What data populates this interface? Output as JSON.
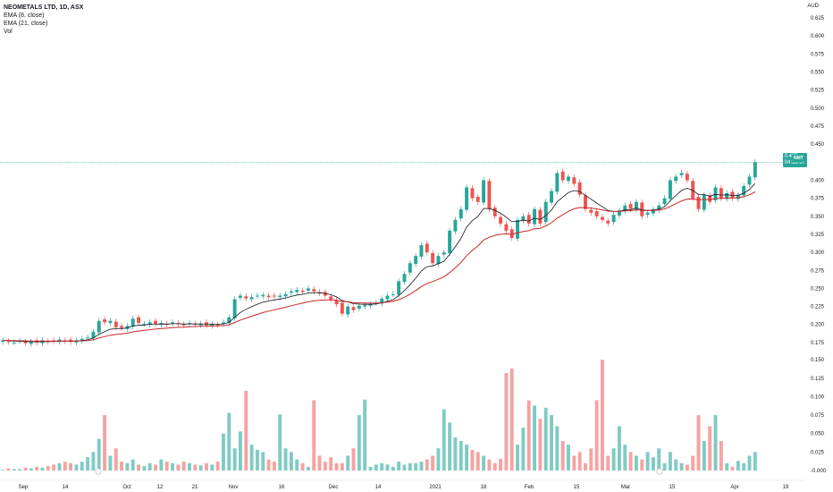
{
  "header": {
    "title": "NEOMETALS LTD, 1D, ASX",
    "indicators": [
      "EMA (8, close)",
      "EMA (21, close)",
      "Vol"
    ]
  },
  "price_panel": {
    "currency": "AUD",
    "last_price_label": "0.425",
    "countdown": "04:33:07",
    "symbol_tag": "NMT"
  },
  "colors": {
    "up": "#26a69a",
    "down": "#ef5350",
    "up_volume": "#80cbc4",
    "down_volume": "#f5a3a2",
    "ema8": "#131722",
    "ema21": "#c62828"
  },
  "chart_data": [
    {
      "type": "candlestick",
      "x_tick_labels": [
        "Sep",
        "14",
        "Oct",
        "12",
        "21",
        "Nov",
        "16",
        "Dec",
        "14",
        "2021",
        "18",
        "Feb",
        "15",
        "Mar",
        "15",
        "Apr",
        "19"
      ],
      "y_tick_labels": [
        "0.625",
        "0.600",
        "0.575",
        "0.550",
        "0.525",
        "0.500",
        "0.475",
        "0.450",
        "0.400",
        "0.375",
        "0.350",
        "0.325",
        "0.300",
        "0.275",
        "0.250",
        "0.225",
        "0.200",
        "0.175"
      ],
      "ylim": [
        0.16,
        0.63
      ],
      "closes": [
        0.178,
        0.176,
        0.175,
        0.177,
        0.174,
        0.176,
        0.175,
        0.178,
        0.176,
        0.177,
        0.179,
        0.177,
        0.176,
        0.178,
        0.18,
        0.182,
        0.19,
        0.205,
        0.203,
        0.205,
        0.196,
        0.195,
        0.198,
        0.208,
        0.202,
        0.201,
        0.203,
        0.201,
        0.202,
        0.2,
        0.203,
        0.201,
        0.199,
        0.202,
        0.2,
        0.201,
        0.199,
        0.201,
        0.199,
        0.203,
        0.21,
        0.235,
        0.24,
        0.236,
        0.238,
        0.24,
        0.241,
        0.238,
        0.239,
        0.24,
        0.242,
        0.246,
        0.248,
        0.245,
        0.25,
        0.246,
        0.243,
        0.24,
        0.235,
        0.228,
        0.215,
        0.225,
        0.22,
        0.226,
        0.227,
        0.228,
        0.23,
        0.236,
        0.24,
        0.242,
        0.26,
        0.27,
        0.285,
        0.295,
        0.31,
        0.3,
        0.285,
        0.295,
        0.3,
        0.33,
        0.345,
        0.36,
        0.39,
        0.375,
        0.37,
        0.4,
        0.36,
        0.35,
        0.34,
        0.33,
        0.32,
        0.345,
        0.35,
        0.34,
        0.36,
        0.34,
        0.37,
        0.385,
        0.41,
        0.4,
        0.405,
        0.395,
        0.38,
        0.36,
        0.355,
        0.35,
        0.345,
        0.34,
        0.352,
        0.358,
        0.365,
        0.36,
        0.37,
        0.35,
        0.355,
        0.36,
        0.365,
        0.375,
        0.4,
        0.405,
        0.41,
        0.4,
        0.375,
        0.36,
        0.38,
        0.37,
        0.39,
        0.375,
        0.382,
        0.375,
        0.38,
        0.392,
        0.405,
        0.425
      ],
      "volumes": [
        0.001,
        0.003,
        0.002,
        0.002,
        0.004,
        0.003,
        0.005,
        0.004,
        0.006,
        0.008,
        0.01,
        0.012,
        0.01,
        0.008,
        0.012,
        0.018,
        0.025,
        0.043,
        0.075,
        0.02,
        0.03,
        0.012,
        0.01,
        0.015,
        0.008,
        0.006,
        0.01,
        0.008,
        0.015,
        0.012,
        0.01,
        0.008,
        0.012,
        0.01,
        0.008,
        0.007,
        0.01,
        0.008,
        0.012,
        0.05,
        0.078,
        0.03,
        0.053,
        0.108,
        0.035,
        0.028,
        0.025,
        0.015,
        0.012,
        0.076,
        0.03,
        0.025,
        0.015,
        0.01,
        0.005,
        0.095,
        0.02,
        0.012,
        0.018,
        0.01,
        0.01,
        0.02,
        0.03,
        0.075,
        0.096,
        0.005,
        0.008,
        0.01,
        0.008,
        0.005,
        0.012,
        0.008,
        0.01,
        0.01,
        0.012,
        0.015,
        0.02,
        0.03,
        0.083,
        0.065,
        0.045,
        0.04,
        0.035,
        0.028,
        0.025,
        0.02,
        0.015,
        0.01,
        0.016,
        0.132,
        0.138,
        0.035,
        0.058,
        0.095,
        0.088,
        0.07,
        0.085,
        0.075,
        0.06,
        0.04,
        0.035,
        0.02,
        0.025,
        0.01,
        0.03,
        0.095,
        0.15,
        0.02,
        0.03,
        0.06,
        0.035,
        0.025,
        0.02,
        0.015,
        0.025,
        0.018,
        0.03,
        0.01,
        0.025,
        0.015,
        0.01,
        0.008,
        0.02,
        0.075,
        0.04,
        0.06,
        0.075,
        0.04,
        0.01,
        0.005,
        0.013,
        0.01,
        0.02,
        0.025,
        0.03,
        0.033,
        0.032
      ],
      "volume_tick_labels": [
        "0.150",
        "0.125",
        "0.100",
        "0.075",
        "0.050",
        "0.025",
        "-0.000"
      ]
    }
  ]
}
